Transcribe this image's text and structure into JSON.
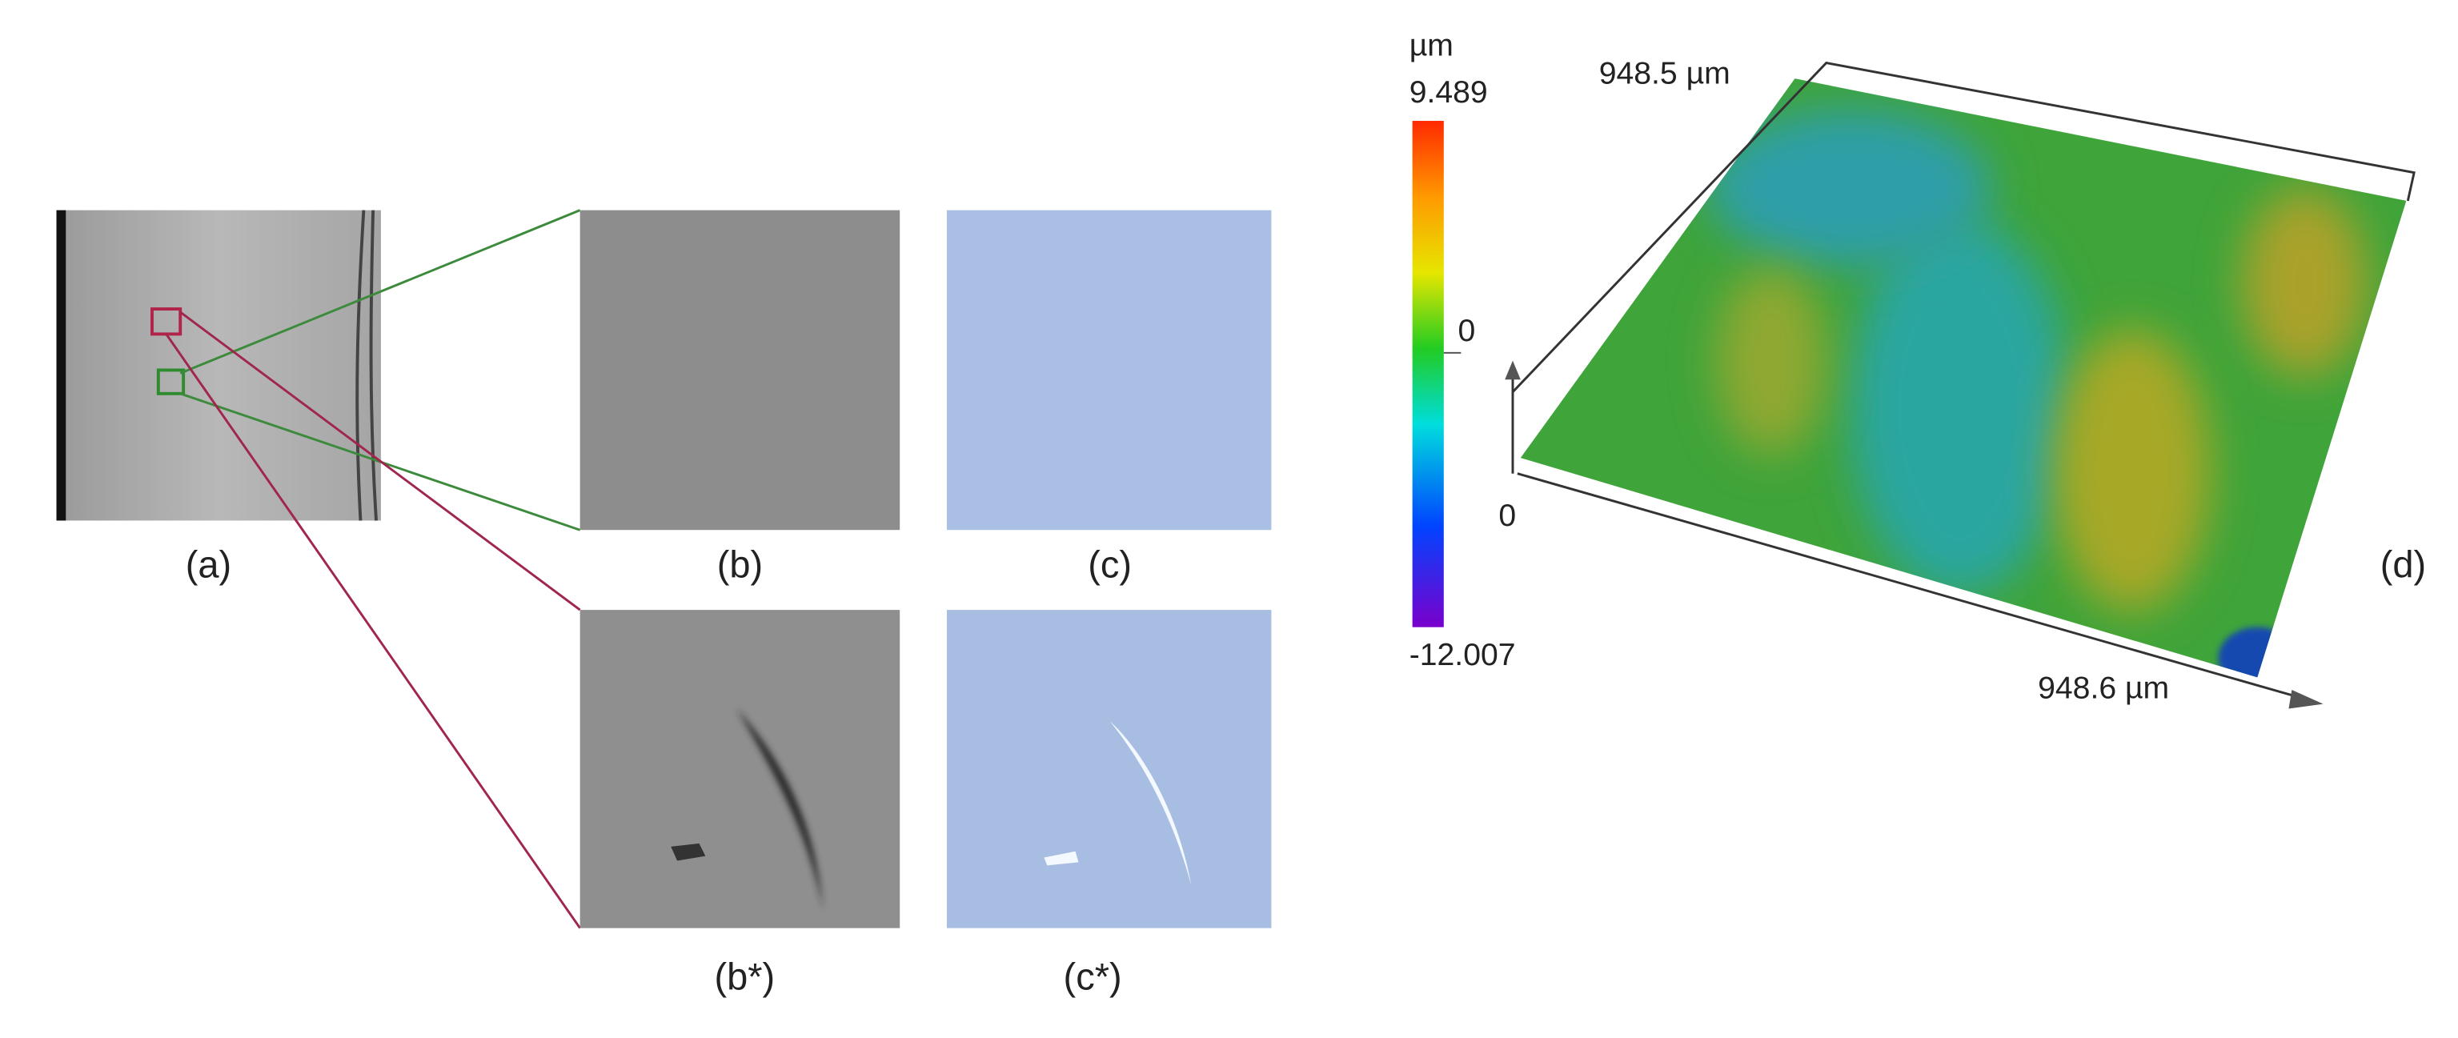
{
  "panels": {
    "a": "(a)",
    "b": "(b)",
    "c": "(c)",
    "b_star": "(b*)",
    "c_star": "(c*)",
    "d": "(d)"
  },
  "colorbar": {
    "unit": "µm",
    "max": "9.489",
    "mid": "0",
    "min": "-12.007"
  },
  "surface_axes": {
    "y_extent": "948.5 µm",
    "origin": "0",
    "x_extent": "948.6 µm"
  }
}
